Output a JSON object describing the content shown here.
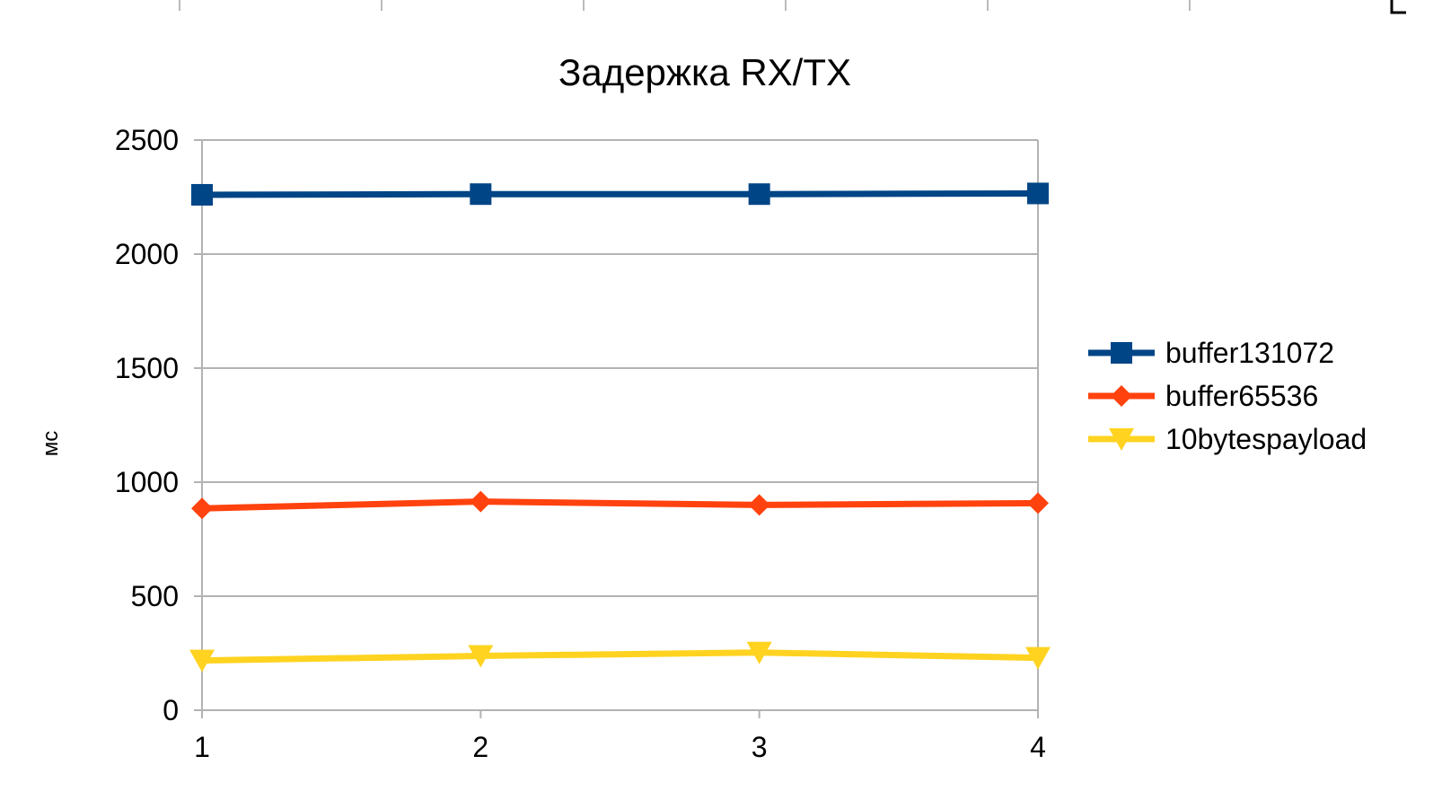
{
  "chart_data": {
    "type": "line",
    "title": "Задержка RX/TX",
    "xlabel": "",
    "ylabel": "мс",
    "x": [
      1,
      2,
      3,
      4
    ],
    "x_tick_labels": [
      "1",
      "2",
      "3",
      "4"
    ],
    "ylim": [
      0,
      2500
    ],
    "y_ticks": [
      0,
      500,
      1000,
      1500,
      2000,
      2500
    ],
    "y_tick_labels": [
      "0",
      "500",
      "1000",
      "1500",
      "2000",
      "2500"
    ],
    "grid": true,
    "legend_position": "right",
    "series": [
      {
        "name": "buffer131072",
        "values": [
          2260,
          2263,
          2263,
          2266
        ],
        "color": "#004586",
        "marker": "square"
      },
      {
        "name": "buffer65536",
        "values": [
          885,
          915,
          900,
          908
        ],
        "color": "#ff420e",
        "marker": "diamond"
      },
      {
        "name": "10bytespayload",
        "values": [
          218,
          238,
          253,
          230
        ],
        "color": "#ffd320",
        "marker": "triangle-down"
      }
    ]
  }
}
